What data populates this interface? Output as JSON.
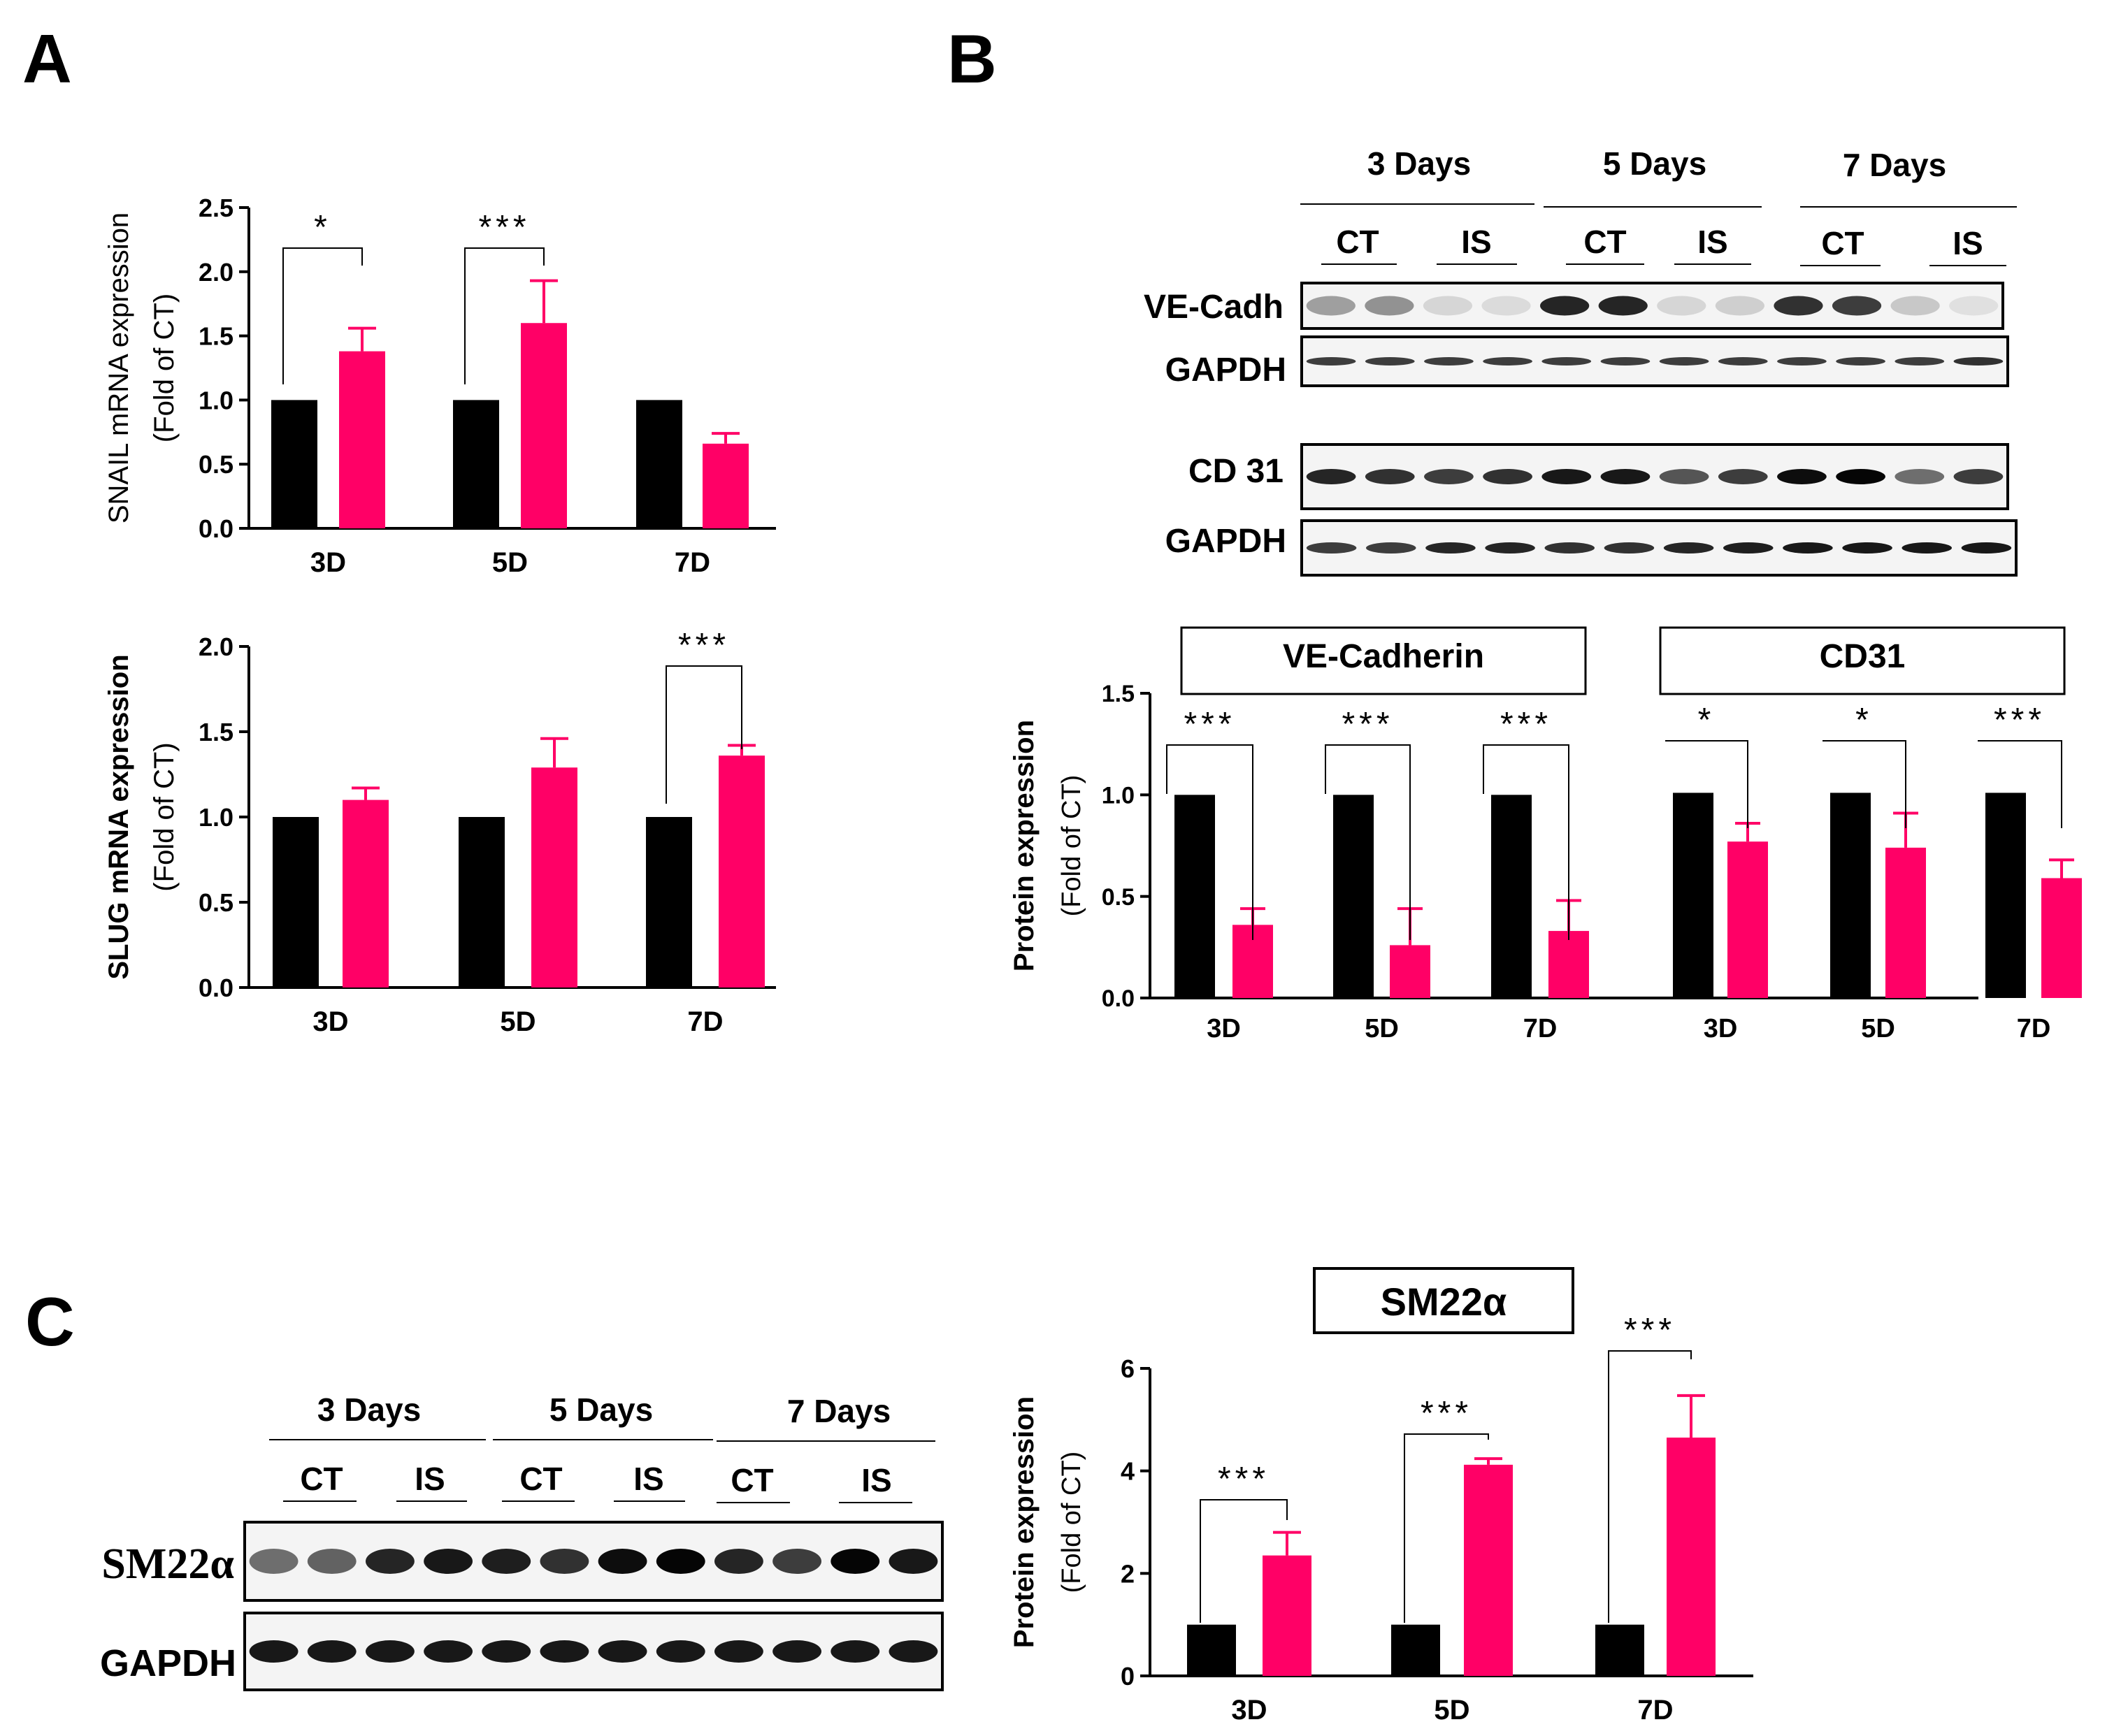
{
  "panel_labels": {
    "a": "A",
    "b": "B",
    "c": "C"
  },
  "colors": {
    "ct": "#000000",
    "is": "#FF0066",
    "err": "#FF0066"
  },
  "blot_b": {
    "day_headers": [
      "3 Days",
      "5 Days",
      "7 Days"
    ],
    "cond_labels": [
      "CT",
      "IS",
      "CT",
      "IS",
      "CT",
      "IS"
    ],
    "rows": [
      "VE-Cadh",
      "GAPDH",
      "CD 31",
      "GAPDH"
    ]
  },
  "blot_c": {
    "day_headers": [
      "3 Days",
      "5 Days",
      "7 Days"
    ],
    "cond_labels": [
      "CT",
      "IS",
      "CT",
      "IS",
      "CT",
      "IS"
    ],
    "rows": [
      "SM22α",
      "GAPDH"
    ]
  },
  "chart_data": [
    {
      "id": "snail",
      "type": "bar",
      "title": "",
      "ylabel": "SNAIL mRNA expression",
      "ylabel2": "(Fold of CT)",
      "categories": [
        "3D",
        "5D",
        "7D"
      ],
      "yticks": [
        "0.0",
        "0.5",
        "1.0",
        "1.5",
        "2.0",
        "2.5"
      ],
      "ylim": [
        0,
        2.5
      ],
      "series": [
        {
          "name": "CT",
          "values": [
            1.0,
            1.0,
            1.0
          ]
        },
        {
          "name": "IS",
          "values": [
            1.38,
            1.6,
            0.66
          ],
          "errors": [
            0.18,
            0.33,
            0.08
          ]
        }
      ],
      "significance": [
        "*",
        "***",
        ""
      ]
    },
    {
      "id": "slug",
      "type": "bar",
      "title": "",
      "ylabel": "SLUG mRNA expression",
      "ylabel2": "(Fold of CT)",
      "categories": [
        "3D",
        "5D",
        "7D"
      ],
      "yticks": [
        "0.0",
        "0.5",
        "1.0",
        "1.5",
        "2.0"
      ],
      "ylim": [
        0,
        2.0
      ],
      "series": [
        {
          "name": "CT",
          "values": [
            1.0,
            1.0,
            1.0
          ]
        },
        {
          "name": "IS",
          "values": [
            1.1,
            1.29,
            1.36
          ],
          "errors": [
            0.07,
            0.17,
            0.06
          ]
        }
      ],
      "significance": [
        "",
        "",
        "***"
      ]
    },
    {
      "id": "protein",
      "type": "bar",
      "title": "",
      "group_titles": [
        "VE-Cadherin",
        "CD31"
      ],
      "ylabel": "Protein expression",
      "ylabel2": "(Fold of CT)",
      "categories": [
        "3D",
        "5D",
        "7D",
        "3D",
        "5D",
        "7D"
      ],
      "yticks": [
        "0.0",
        "0.5",
        "1.0",
        "1.5"
      ],
      "ylim": [
        0,
        1.5
      ],
      "series": [
        {
          "name": "CT",
          "values": [
            1.0,
            1.0,
            1.0,
            1.01,
            1.01,
            1.01
          ]
        },
        {
          "name": "IS",
          "values": [
            0.36,
            0.26,
            0.33,
            0.77,
            0.74,
            0.59
          ],
          "errors": [
            0.08,
            0.18,
            0.15,
            0.09,
            0.17,
            0.09
          ]
        }
      ],
      "significance": [
        "***",
        "***",
        "***",
        "*",
        "*",
        "***"
      ]
    },
    {
      "id": "sm22",
      "type": "bar",
      "title": "SM22α",
      "ylabel": "Protein expression",
      "ylabel2": "(Fold of CT)",
      "categories": [
        "3D",
        "5D",
        "7D"
      ],
      "yticks": [
        "0",
        "2",
        "4",
        "6"
      ],
      "ylim": [
        0,
        6
      ],
      "series": [
        {
          "name": "CT",
          "values": [
            1.0,
            1.0,
            1.0
          ]
        },
        {
          "name": "IS",
          "values": [
            2.35,
            4.12,
            4.65
          ],
          "errors": [
            0.45,
            0.12,
            0.82
          ]
        }
      ],
      "significance": [
        "***",
        "***",
        "***"
      ]
    }
  ]
}
